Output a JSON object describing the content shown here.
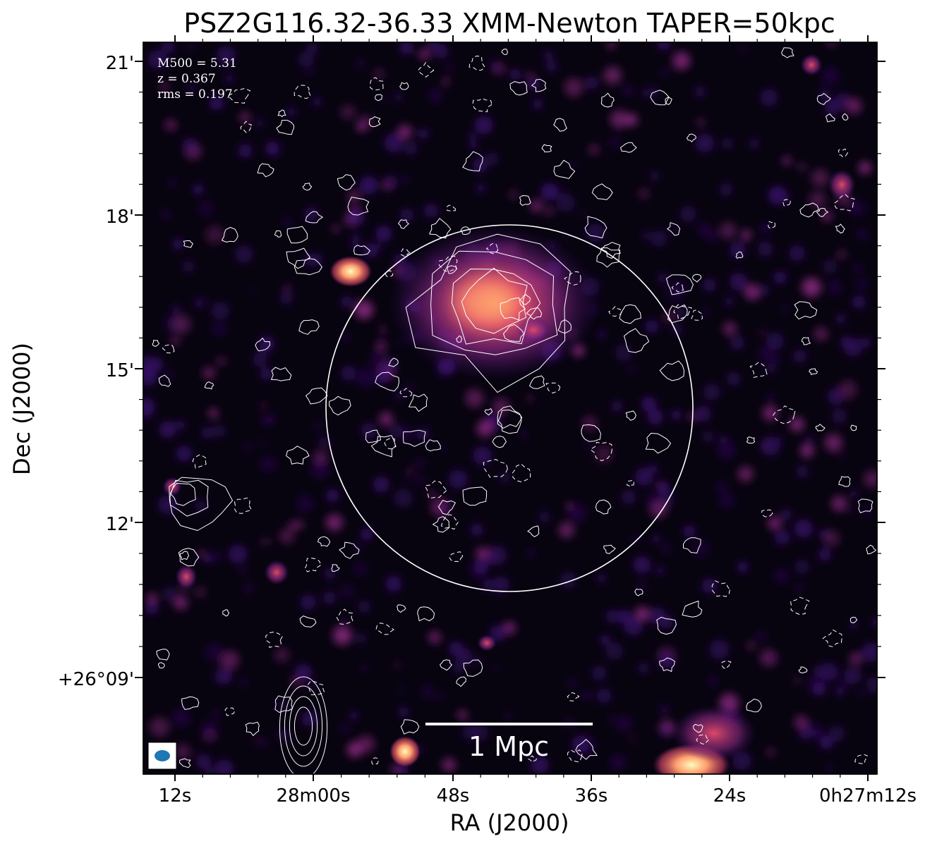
{
  "title": "PSZ2G116.32-36.33 XMM-Newton TAPER=50kpc",
  "x_axis_label": "RA (J2000)",
  "y_axis_label": "Dec (J2000)",
  "x_ticks": [
    "12s",
    "28m00s",
    "48s",
    "36s",
    "24s",
    "0h27m12s"
  ],
  "y_ticks": [
    "21'",
    "18'",
    "15'",
    "12'",
    "+26°09'"
  ],
  "info": {
    "m500": "M500 = 5.31",
    "z": "z = 0.367",
    "rms": "rms = 0.197"
  },
  "scale_bar_label": "1 Mpc",
  "colormap": [
    "#000004",
    "#3b0f70",
    "#8c2981",
    "#de4968",
    "#fe9f6d",
    "#fcfdbf"
  ],
  "contour_color": "#ffffff",
  "beam_color": "#1f77b4"
}
